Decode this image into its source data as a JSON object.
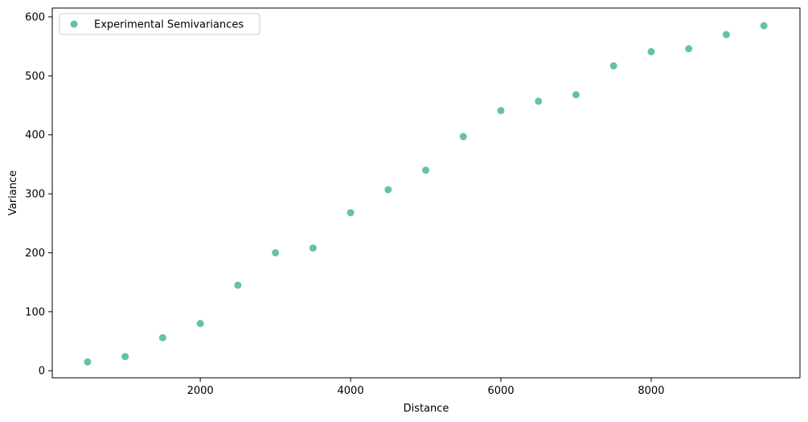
{
  "chart_data": {
    "type": "scatter",
    "title": "",
    "xlabel": "Distance",
    "ylabel": "Variance",
    "xlim": [
      30,
      9980
    ],
    "ylim": [
      -12,
      615
    ],
    "xticks": [
      2000,
      4000,
      6000,
      8000
    ],
    "yticks": [
      0,
      100,
      200,
      300,
      400,
      500,
      600
    ],
    "grid": false,
    "legend": "top-left",
    "series": [
      {
        "name": "Experimental Semivariances",
        "color": "#66c2a5",
        "marker": "circle",
        "x": [
          500,
          1000,
          1500,
          2000,
          2500,
          3000,
          3500,
          4000,
          4500,
          5000,
          5500,
          6000,
          6500,
          7000,
          7500,
          8000,
          8500,
          9000,
          9500
        ],
        "y": [
          15,
          24,
          56,
          80,
          145,
          200,
          208,
          268,
          307,
          340,
          397,
          441,
          457,
          468,
          517,
          541,
          546,
          570,
          585
        ]
      }
    ]
  }
}
